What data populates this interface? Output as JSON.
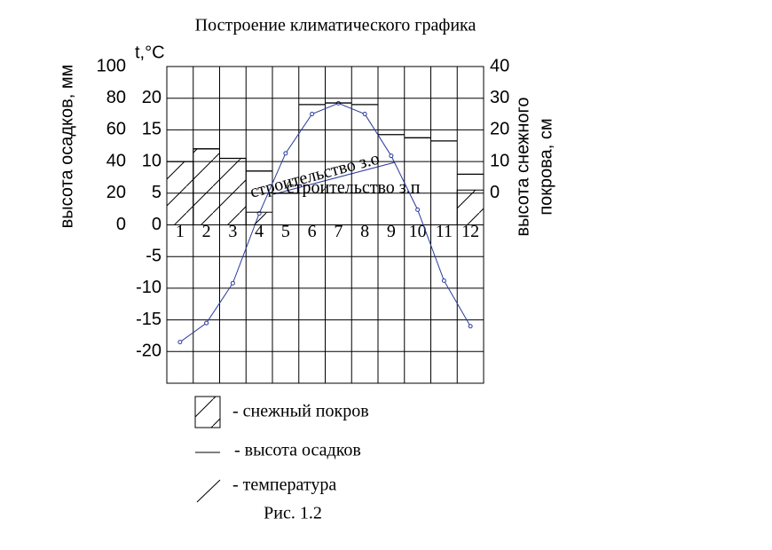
{
  "chart_data": {
    "type": "climate",
    "title": "Построение климатического графика",
    "ylabel": "t,°C",
    "y3label": "высота осадков, мм",
    "y2label": [
      "высота снежного",
      "покрова, см"
    ],
    "categories": [
      "1",
      "2",
      "3",
      "4",
      "5",
      "6",
      "7",
      "8",
      "9",
      "10",
      "11",
      "12"
    ],
    "ylim": [
      -25,
      25
    ],
    "yticks": [
      -20,
      -15,
      -10,
      -5,
      0,
      5,
      10,
      15,
      20
    ],
    "y2lim": [
      -60,
      40
    ],
    "y2ticks": [
      0,
      10,
      20,
      30,
      40
    ],
    "y3lim": [
      -100,
      100
    ],
    "y3ticks": [
      0,
      20,
      40,
      60,
      80,
      100
    ],
    "grid": true,
    "series": [
      {
        "name": "- температура",
        "kind": "line",
        "axis": "y",
        "color": "#2a3a9a",
        "values": [
          -18.5,
          -15.5,
          -9.2,
          1.8,
          11.3,
          17.5,
          19.2,
          17.5,
          10.9,
          2.4,
          -8.8,
          -16.0
        ]
      },
      {
        "name": "- высота осадков",
        "kind": "level",
        "axis": "y3",
        "color": "#000000",
        "values": [
          40,
          48,
          42,
          34,
          20,
          76,
          77,
          76,
          57,
          55,
          53,
          32
        ]
      },
      {
        "name": "- снежный покров",
        "kind": "hatch",
        "axis": "y2",
        "color": "#000000",
        "values": [
          10,
          14,
          11,
          -6,
          null,
          null,
          null,
          null,
          null,
          null,
          null,
          1
        ]
      }
    ],
    "annotations": [
      "строительство з.о",
      "строительство з.п"
    ],
    "caption": "Рис. 1.2"
  }
}
